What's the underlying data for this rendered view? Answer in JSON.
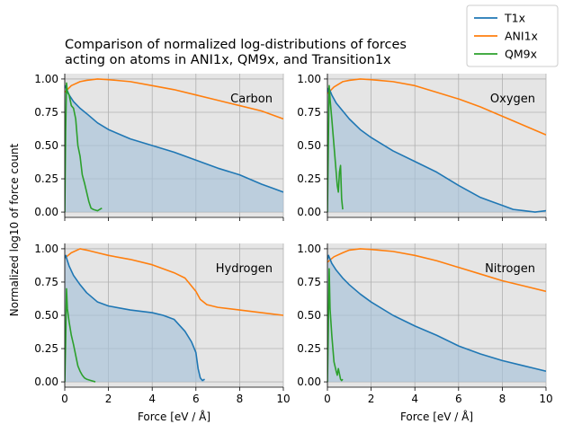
{
  "chart_data": {
    "type": "line",
    "title_lines": [
      "Comparison of normalized log-distributions of forces",
      "acting on atoms in ANI1x, QM9x, and Transition1x"
    ],
    "xlabel": "Force [eV / Å]",
    "ylabel": "Normalized log10 of force count",
    "xlim": [
      0,
      10
    ],
    "ylim": [
      -0.04,
      1.04
    ],
    "xticks": [
      0,
      2,
      4,
      6,
      8,
      10
    ],
    "xtick_labels": [
      "0",
      "2",
      "4",
      "6",
      "8",
      "10"
    ],
    "yticks": [
      0,
      0.25,
      0.5,
      0.75,
      1.0
    ],
    "ytick_labels": [
      "0.00",
      "0.25",
      "0.50",
      "0.75",
      "1.00"
    ],
    "grid": true,
    "legend_position": "top-right",
    "legend": [
      {
        "name": "T1x",
        "color": "#1f77b4"
      },
      {
        "name": "ANI1x",
        "color": "#ff7f0e"
      },
      {
        "name": "QM9x",
        "color": "#2ca02c"
      }
    ],
    "panels": [
      {
        "name": "Carbon",
        "series": {
          "T1x": {
            "x": [
              0,
              0.05,
              0.1,
              0.2,
              0.4,
              0.7,
              1.0,
              1.5,
              2.0,
              3.0,
              4.0,
              5.0,
              6.0,
              7.0,
              8.0,
              9.0,
              9.5,
              10.0
            ],
            "y": [
              0.93,
              0.95,
              0.92,
              0.88,
              0.83,
              0.78,
              0.74,
              0.67,
              0.62,
              0.55,
              0.5,
              0.45,
              0.39,
              0.33,
              0.28,
              0.21,
              0.18,
              0.15
            ]
          },
          "ANI1x": {
            "x": [
              0,
              0.3,
              0.7,
              1.0,
              1.5,
              2.0,
              3.0,
              4.0,
              5.0,
              6.0,
              7.0,
              8.0,
              9.0,
              10.0
            ],
            "y": [
              0.9,
              0.95,
              0.98,
              0.99,
              1.0,
              0.995,
              0.98,
              0.95,
              0.92,
              0.88,
              0.84,
              0.8,
              0.76,
              0.7
            ]
          },
          "QM9x": {
            "x": [
              0,
              0.04,
              0.08,
              0.12,
              0.2,
              0.3,
              0.4,
              0.5,
              0.6,
              0.7,
              0.8,
              0.9,
              1.0,
              1.1,
              1.2,
              1.3,
              1.5,
              1.7
            ],
            "y": [
              0.0,
              0.6,
              0.97,
              0.9,
              0.88,
              0.8,
              0.78,
              0.7,
              0.5,
              0.42,
              0.28,
              0.22,
              0.15,
              0.08,
              0.03,
              0.02,
              0.01,
              0.03
            ]
          }
        }
      },
      {
        "name": "Oxygen",
        "series": {
          "T1x": {
            "x": [
              0,
              0.05,
              0.1,
              0.2,
              0.4,
              0.7,
              1.0,
              1.5,
              2.0,
              3.0,
              4.0,
              5.0,
              6.0,
              7.0,
              7.5,
              8.0,
              8.5,
              9.0,
              9.5,
              10.0
            ],
            "y": [
              0.9,
              0.93,
              0.92,
              0.88,
              0.82,
              0.76,
              0.7,
              0.62,
              0.56,
              0.46,
              0.38,
              0.3,
              0.2,
              0.11,
              0.08,
              0.05,
              0.02,
              0.01,
              0.0,
              0.01
            ]
          },
          "ANI1x": {
            "x": [
              0,
              0.3,
              0.7,
              1.0,
              1.5,
              2.0,
              3.0,
              4.0,
              5.0,
              6.0,
              7.0,
              8.0,
              9.0,
              10.0
            ],
            "y": [
              0.89,
              0.94,
              0.98,
              0.99,
              1.0,
              0.995,
              0.98,
              0.95,
              0.9,
              0.85,
              0.79,
              0.72,
              0.65,
              0.58
            ]
          },
          "QM9x": {
            "x": [
              0,
              0.04,
              0.08,
              0.12,
              0.2,
              0.3,
              0.4,
              0.45,
              0.5,
              0.55,
              0.6,
              0.65,
              0.7
            ],
            "y": [
              0.0,
              0.5,
              0.95,
              0.85,
              0.7,
              0.5,
              0.3,
              0.2,
              0.15,
              0.3,
              0.35,
              0.1,
              0.02
            ]
          }
        }
      },
      {
        "name": "Hydrogen",
        "series": {
          "T1x": {
            "x": [
              0,
              0.05,
              0.1,
              0.2,
              0.4,
              0.7,
              1.0,
              1.5,
              2.0,
              3.0,
              4.0,
              4.5,
              5.0,
              5.5,
              5.8,
              6.0,
              6.1,
              6.2,
              6.3,
              6.4
            ],
            "y": [
              0.93,
              0.95,
              0.92,
              0.87,
              0.8,
              0.73,
              0.67,
              0.6,
              0.57,
              0.54,
              0.52,
              0.5,
              0.47,
              0.38,
              0.3,
              0.22,
              0.1,
              0.03,
              0.01,
              0.02
            ]
          },
          "ANI1x": {
            "x": [
              0,
              0.3,
              0.7,
              1.0,
              1.5,
              2.0,
              3.0,
              4.0,
              5.0,
              5.5,
              6.0,
              6.2,
              6.5,
              7.0,
              8.0,
              9.0,
              10.0
            ],
            "y": [
              0.93,
              0.97,
              1.0,
              0.99,
              0.97,
              0.95,
              0.92,
              0.88,
              0.82,
              0.78,
              0.68,
              0.62,
              0.58,
              0.56,
              0.54,
              0.52,
              0.5
            ]
          },
          "QM9x": {
            "x": [
              0,
              0.04,
              0.08,
              0.12,
              0.2,
              0.3,
              0.4,
              0.5,
              0.6,
              0.7,
              0.8,
              0.9,
              1.0,
              1.2,
              1.4
            ],
            "y": [
              0.0,
              0.3,
              0.7,
              0.55,
              0.45,
              0.35,
              0.28,
              0.2,
              0.12,
              0.08,
              0.05,
              0.03,
              0.02,
              0.01,
              0.0
            ]
          }
        }
      },
      {
        "name": "Nitrogen",
        "series": {
          "T1x": {
            "x": [
              0,
              0.05,
              0.1,
              0.2,
              0.4,
              0.7,
              1.0,
              1.5,
              2.0,
              3.0,
              4.0,
              5.0,
              6.0,
              7.0,
              8.0,
              9.0,
              9.5,
              10.0
            ],
            "y": [
              0.92,
              0.95,
              0.93,
              0.89,
              0.84,
              0.78,
              0.73,
              0.66,
              0.6,
              0.5,
              0.42,
              0.35,
              0.27,
              0.21,
              0.16,
              0.12,
              0.1,
              0.08
            ]
          },
          "ANI1x": {
            "x": [
              0,
              0.3,
              0.7,
              1.0,
              1.5,
              2.0,
              3.0,
              4.0,
              5.0,
              6.0,
              7.0,
              8.0,
              9.0,
              10.0
            ],
            "y": [
              0.9,
              0.94,
              0.97,
              0.99,
              1.0,
              0.995,
              0.98,
              0.95,
              0.91,
              0.86,
              0.81,
              0.76,
              0.72,
              0.68
            ]
          },
          "QM9x": {
            "x": [
              0,
              0.04,
              0.08,
              0.12,
              0.2,
              0.3,
              0.4,
              0.45,
              0.5,
              0.55,
              0.6,
              0.65,
              0.7
            ],
            "y": [
              0.0,
              0.4,
              0.85,
              0.55,
              0.35,
              0.15,
              0.08,
              0.05,
              0.1,
              0.06,
              0.02,
              0.01,
              0.02
            ]
          }
        }
      }
    ],
    "colors": {
      "plot_background": "#e5e5e5",
      "grid": "#b0b0b0",
      "fill": "#a6c2d9"
    }
  }
}
